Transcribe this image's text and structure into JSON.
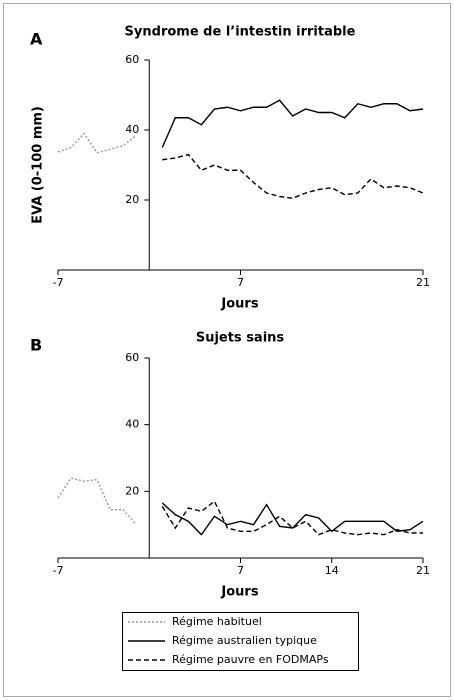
{
  "chart_data": [
    {
      "type": "line",
      "panel": "A",
      "title": "Syndrome de l’intestin irritable",
      "xlabel": "Jours",
      "ylabel": "EVA (0-100 mm)",
      "xlim": [
        -7,
        21
      ],
      "xticks": [
        -7,
        7,
        21
      ],
      "ylim": [
        0,
        60
      ],
      "yticks": [
        20,
        40,
        60
      ],
      "series": [
        {
          "name": "Régime habituel",
          "color": "#999999",
          "style": "dotted",
          "x": [
            -7,
            -6,
            -5,
            -4,
            -3,
            -2,
            -1
          ],
          "values": [
            33.7,
            35,
            39,
            33.5,
            34.5,
            35.5,
            38.5
          ]
        },
        {
          "name": "Régime australien typique",
          "color": "#000000",
          "style": "solid",
          "x": [
            1,
            2,
            3,
            4,
            5,
            6,
            7,
            8,
            9,
            10,
            11,
            12,
            13,
            14,
            15,
            16,
            17,
            18,
            19,
            20,
            21
          ],
          "values": [
            35,
            43.5,
            43.5,
            41.5,
            46,
            46.5,
            45.5,
            46.5,
            46.5,
            48.5,
            44,
            46,
            45,
            45,
            43.5,
            47.5,
            46.5,
            47.5,
            47.5,
            45.5,
            46
          ]
        },
        {
          "name": "Régime pauvre en FODMAPs",
          "color": "#000000",
          "style": "dashed",
          "x": [
            1,
            2,
            3,
            4,
            5,
            6,
            7,
            8,
            9,
            10,
            11,
            12,
            13,
            14,
            15,
            16,
            17,
            18,
            19,
            20,
            21
          ],
          "values": [
            31.5,
            32,
            33,
            28.5,
            30,
            28.5,
            28.5,
            25,
            22,
            21,
            20.5,
            22,
            23,
            23.5,
            21.5,
            22,
            26,
            23.5,
            24,
            23.5,
            22
          ]
        }
      ]
    },
    {
      "type": "line",
      "panel": "B",
      "title": "Sujets sains",
      "xlabel": "Jours",
      "xlim": [
        -7,
        21
      ],
      "xticks": [
        -7,
        7,
        14,
        21
      ],
      "ylim": [
        0,
        60
      ],
      "yticks": [
        20,
        40,
        60
      ],
      "series": [
        {
          "color": "#999999",
          "style": "dotted",
          "x": [
            -7,
            -6,
            -5,
            -4,
            -3,
            -2,
            -1
          ],
          "values": [
            18,
            24,
            23,
            23.5,
            14.5,
            14.5,
            10
          ]
        },
        {
          "color": "#000000",
          "style": "solid",
          "x": [
            1,
            2,
            3,
            4,
            5,
            6,
            7,
            8,
            9,
            10,
            11,
            12,
            13,
            14,
            15,
            16,
            17,
            18,
            19,
            20,
            21
          ],
          "values": [
            16.5,
            13,
            11,
            7,
            12.5,
            10,
            11,
            10,
            16,
            9.5,
            9,
            13,
            12,
            8,
            11,
            11,
            11,
            11,
            8,
            8.5,
            11
          ]
        },
        {
          "color": "#000000",
          "style": "dashed",
          "x": [
            1,
            2,
            3,
            4,
            5,
            6,
            7,
            8,
            9,
            10,
            11,
            12,
            13,
            14,
            15,
            16,
            17,
            18,
            19,
            20,
            21
          ],
          "values": [
            15.5,
            9,
            15,
            14,
            17,
            9,
            8,
            8,
            10,
            12.5,
            9,
            11,
            7,
            8.5,
            7.5,
            7,
            7.5,
            7,
            8.5,
            7.5,
            7.5
          ]
        }
      ]
    }
  ]
}
